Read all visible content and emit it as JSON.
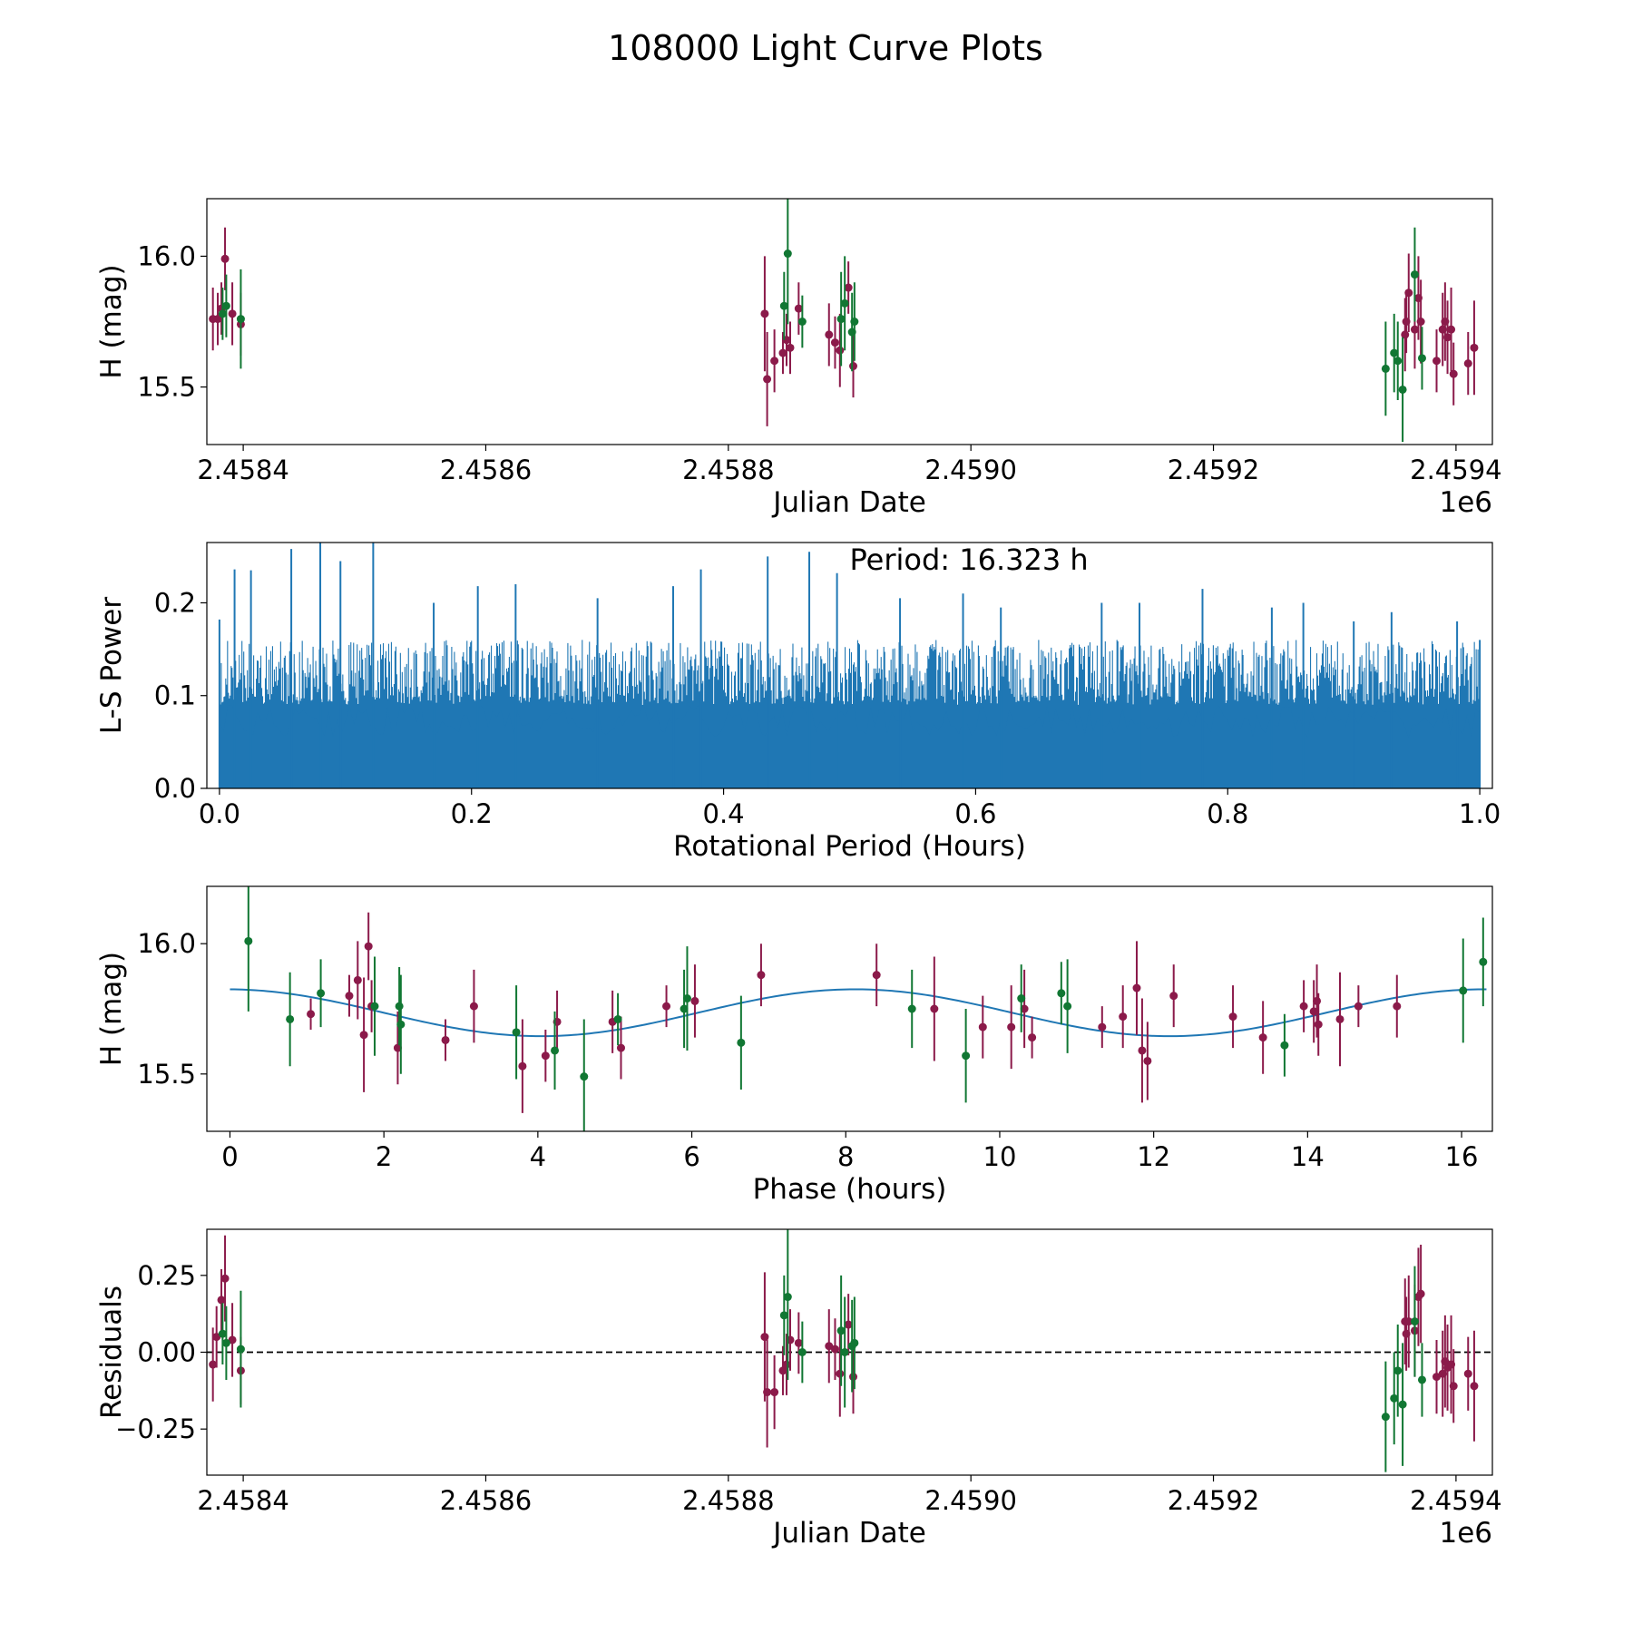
{
  "figure": {
    "title": "108000 Light Curve Plots"
  },
  "colors": {
    "filter_r": "#8b1a4a",
    "filter_g": "#117733",
    "model": "#1f77b4",
    "periodogram": "#1f77b4",
    "zero_line": "#000000"
  },
  "chart_data": [
    {
      "id": "lightcurve",
      "type": "scatter",
      "title": "",
      "xlabel": "Julian Date",
      "ylabel": "H (mag)",
      "x_offset_label": "1e6",
      "xlim": [
        2.45837,
        2.45943
      ],
      "ylim": [
        15.28,
        16.22
      ],
      "xticks": [
        2.4584,
        2.4586,
        2.4588,
        2.459,
        2.4592,
        2.4594
      ],
      "xtick_labels": [
        "2.4584",
        "2.4586",
        "2.4588",
        "2.4590",
        "2.4592",
        "2.4594"
      ],
      "yticks": [
        15.5,
        16.0
      ],
      "ytick_labels": [
        "15.5",
        "16.0"
      ],
      "series": [
        {
          "name": "r",
          "color": "#8b1a4a",
          "points": [
            [
              2.458375,
              15.76,
              0.12
            ],
            [
              2.458379,
              15.76,
              0.1
            ],
            [
              2.458382,
              15.8,
              0.1
            ],
            [
              2.458385,
              15.99,
              0.12
            ],
            [
              2.458391,
              15.78,
              0.12
            ],
            [
              2.458398,
              15.74,
              0.12
            ],
            [
              2.45883,
              15.78,
              0.22
            ],
            [
              2.458832,
              15.53,
              0.18
            ],
            [
              2.458838,
              15.6,
              0.12
            ],
            [
              2.458845,
              15.63,
              0.08
            ],
            [
              2.458848,
              15.68,
              0.1
            ],
            [
              2.458851,
              15.65,
              0.1
            ],
            [
              2.458858,
              15.8,
              0.1
            ],
            [
              2.458883,
              15.7,
              0.12
            ],
            [
              2.458888,
              15.67,
              0.1
            ],
            [
              2.458892,
              15.64,
              0.14
            ],
            [
              2.458899,
              15.88,
              0.1
            ],
            [
              2.458903,
              15.58,
              0.12
            ],
            [
              2.459358,
              15.7,
              0.14
            ],
            [
              2.459359,
              15.75,
              0.12
            ],
            [
              2.459361,
              15.86,
              0.15
            ],
            [
              2.459366,
              15.72,
              0.15
            ],
            [
              2.459369,
              15.84,
              0.16
            ],
            [
              2.459371,
              15.75,
              0.16
            ],
            [
              2.459384,
              15.6,
              0.12
            ],
            [
              2.459389,
              15.72,
              0.14
            ],
            [
              2.459391,
              15.75,
              0.15
            ],
            [
              2.459393,
              15.69,
              0.14
            ],
            [
              2.459396,
              15.72,
              0.16
            ],
            [
              2.459398,
              15.55,
              0.12
            ],
            [
              2.45941,
              15.59,
              0.12
            ],
            [
              2.459415,
              15.65,
              0.18
            ]
          ]
        },
        {
          "name": "g",
          "color": "#117733",
          "points": [
            [
              2.458383,
              15.78,
              0.1
            ],
            [
              2.458386,
              15.81,
              0.12
            ],
            [
              2.458398,
              15.76,
              0.19
            ],
            [
              2.458846,
              15.81,
              0.13
            ],
            [
              2.458849,
              16.01,
              0.27
            ],
            [
              2.458861,
              15.75,
              0.1
            ],
            [
              2.458893,
              15.76,
              0.18
            ],
            [
              2.458896,
              15.82,
              0.18
            ],
            [
              2.458902,
              15.71,
              0.15
            ],
            [
              2.458904,
              15.75,
              0.15
            ],
            [
              2.459342,
              15.57,
              0.18
            ],
            [
              2.459349,
              15.63,
              0.15
            ],
            [
              2.459352,
              15.6,
              0.15
            ],
            [
              2.459356,
              15.49,
              0.2
            ],
            [
              2.459366,
              15.93,
              0.18
            ],
            [
              2.459372,
              15.61,
              0.12
            ]
          ]
        }
      ]
    },
    {
      "id": "periodogram",
      "type": "line",
      "title": "",
      "annotation": "Period: 16.323 h",
      "xlabel": "Rotational Period (Hours)",
      "ylabel": "L-S Power",
      "xlim": [
        -0.01,
        1.01
      ],
      "ylim": [
        0.0,
        0.265
      ],
      "xticks": [
        0.0,
        0.2,
        0.4,
        0.6,
        0.8,
        1.0
      ],
      "xtick_labels": [
        "0.0",
        "0.2",
        "0.4",
        "0.6",
        "0.8",
        "1.0"
      ],
      "yticks": [
        0.0,
        0.1,
        0.2
      ],
      "ytick_labels": [
        "0.0",
        "0.1",
        "0.2"
      ],
      "peaks": [
        [
          0.0,
          0.182
        ],
        [
          0.012,
          0.236
        ],
        [
          0.025,
          0.235
        ],
        [
          0.057,
          0.258
        ],
        [
          0.08,
          0.27
        ],
        [
          0.096,
          0.245
        ],
        [
          0.122,
          0.27
        ],
        [
          0.17,
          0.2
        ],
        [
          0.205,
          0.218
        ],
        [
          0.235,
          0.22
        ],
        [
          0.3,
          0.205
        ],
        [
          0.36,
          0.218
        ],
        [
          0.382,
          0.236
        ],
        [
          0.435,
          0.25
        ],
        [
          0.468,
          0.255
        ],
        [
          0.49,
          0.232
        ],
        [
          0.54,
          0.205
        ],
        [
          0.59,
          0.21
        ],
        [
          0.62,
          0.195
        ],
        [
          0.7,
          0.2
        ],
        [
          0.73,
          0.2
        ],
        [
          0.78,
          0.215
        ],
        [
          0.835,
          0.195
        ],
        [
          0.86,
          0.2
        ],
        [
          0.9,
          0.18
        ],
        [
          0.93,
          0.19
        ],
        [
          0.982,
          0.18
        ],
        [
          1.0,
          0.16
        ]
      ],
      "typical_peak_range": [
        0.1,
        0.16
      ],
      "noise_floor_range": [
        0.04,
        0.09
      ]
    },
    {
      "id": "phased",
      "type": "scatter",
      "title": "",
      "xlabel": "Phase (hours)",
      "ylabel": "H (mag)",
      "xlim": [
        -0.3,
        16.4
      ],
      "ylim": [
        15.28,
        16.22
      ],
      "xticks": [
        0,
        2,
        4,
        6,
        8,
        10,
        12,
        14,
        16
      ],
      "xtick_labels": [
        "0",
        "2",
        "4",
        "6",
        "8",
        "10",
        "12",
        "14",
        "16"
      ],
      "yticks": [
        15.5,
        16.0
      ],
      "ytick_labels": [
        "15.5",
        "16.0"
      ],
      "model": {
        "period_hours": 16.323,
        "mean": 15.735,
        "amplitude": 0.09,
        "peak_phase": 8.12,
        "samples": [
          0,
          16.323
        ]
      },
      "series": [
        {
          "name": "r",
          "color": "#8b1a4a",
          "points": [
            [
              1.05,
              15.73,
              0.06
            ],
            [
              1.55,
              15.8,
              0.08
            ],
            [
              1.66,
              15.86,
              0.15
            ],
            [
              1.74,
              15.65,
              0.22
            ],
            [
              1.8,
              15.99,
              0.13
            ],
            [
              1.84,
              15.76,
              0.1
            ],
            [
              2.18,
              15.6,
              0.14
            ],
            [
              2.8,
              15.63,
              0.08
            ],
            [
              3.17,
              15.76,
              0.14
            ],
            [
              3.8,
              15.53,
              0.18
            ],
            [
              4.1,
              15.57,
              0.1
            ],
            [
              4.25,
              15.7,
              0.12
            ],
            [
              4.97,
              15.7,
              0.12
            ],
            [
              5.08,
              15.6,
              0.12
            ],
            [
              5.67,
              15.76,
              0.08
            ],
            [
              6.04,
              15.78,
              0.14
            ],
            [
              6.9,
              15.88,
              0.12
            ],
            [
              8.4,
              15.88,
              0.12
            ],
            [
              9.15,
              15.75,
              0.2
            ],
            [
              9.78,
              15.68,
              0.12
            ],
            [
              10.15,
              15.68,
              0.16
            ],
            [
              10.32,
              15.75,
              0.15
            ],
            [
              10.42,
              15.64,
              0.08
            ],
            [
              11.33,
              15.68,
              0.08
            ],
            [
              11.6,
              15.72,
              0.12
            ],
            [
              11.78,
              15.83,
              0.18
            ],
            [
              11.85,
              15.59,
              0.2
            ],
            [
              11.92,
              15.55,
              0.15
            ],
            [
              12.26,
              15.8,
              0.12
            ],
            [
              13.03,
              15.72,
              0.12
            ],
            [
              13.42,
              15.64,
              0.14
            ],
            [
              13.95,
              15.76,
              0.1
            ],
            [
              14.08,
              15.74,
              0.12
            ],
            [
              14.12,
              15.78,
              0.14
            ],
            [
              14.14,
              15.69,
              0.12
            ],
            [
              14.42,
              15.71,
              0.18
            ],
            [
              14.66,
              15.76,
              0.08
            ],
            [
              15.16,
              15.76,
              0.12
            ]
          ]
        },
        {
          "name": "g",
          "color": "#117733",
          "points": [
            [
              0.24,
              16.01,
              0.27
            ],
            [
              0.78,
              15.71,
              0.18
            ],
            [
              1.18,
              15.81,
              0.13
            ],
            [
              1.88,
              15.76,
              0.19
            ],
            [
              2.22,
              15.69,
              0.19
            ],
            [
              2.2,
              15.76,
              0.15
            ],
            [
              3.72,
              15.66,
              0.18
            ],
            [
              4.22,
              15.59,
              0.15
            ],
            [
              4.6,
              15.49,
              0.22
            ],
            [
              5.04,
              15.71,
              0.1
            ],
            [
              5.9,
              15.75,
              0.15
            ],
            [
              5.94,
              15.79,
              0.2
            ],
            [
              6.64,
              15.62,
              0.18
            ],
            [
              8.86,
              15.75,
              0.15
            ],
            [
              9.56,
              15.57,
              0.18
            ],
            [
              10.28,
              15.79,
              0.13
            ],
            [
              10.8,
              15.81,
              0.12
            ],
            [
              10.88,
              15.76,
              0.18
            ],
            [
              13.7,
              15.61,
              0.12
            ],
            [
              16.02,
              15.82,
              0.2
            ],
            [
              16.28,
              15.93,
              0.17
            ]
          ]
        }
      ]
    },
    {
      "id": "residuals",
      "type": "scatter",
      "title": "",
      "xlabel": "Julian Date",
      "ylabel": "Residuals",
      "x_offset_label": "1e6",
      "xlim": [
        2.45837,
        2.45943
      ],
      "ylim": [
        -0.4,
        0.4
      ],
      "xticks": [
        2.4584,
        2.4586,
        2.4588,
        2.459,
        2.4592,
        2.4594
      ],
      "xtick_labels": [
        "2.4584",
        "2.4586",
        "2.4588",
        "2.4590",
        "2.4592",
        "2.4594"
      ],
      "yticks": [
        -0.25,
        0.0,
        0.25
      ],
      "ytick_labels": [
        "−0.25",
        "0.00",
        "0.25"
      ],
      "reference_line": 0.0,
      "series": [
        {
          "name": "r",
          "color": "#8b1a4a",
          "points": [
            [
              2.458375,
              -0.04,
              0.12
            ],
            [
              2.458378,
              0.05,
              0.1
            ],
            [
              2.458382,
              0.17,
              0.1
            ],
            [
              2.458385,
              0.24,
              0.14
            ],
            [
              2.458391,
              0.04,
              0.12
            ],
            [
              2.458398,
              -0.06,
              0.11
            ],
            [
              2.45883,
              0.05,
              0.21
            ],
            [
              2.458832,
              -0.13,
              0.18
            ],
            [
              2.458838,
              -0.13,
              0.12
            ],
            [
              2.458845,
              -0.06,
              0.08
            ],
            [
              2.458848,
              -0.04,
              0.1
            ],
            [
              2.458851,
              0.04,
              0.1
            ],
            [
              2.458858,
              0.03,
              0.1
            ],
            [
              2.458883,
              0.02,
              0.12
            ],
            [
              2.458888,
              0.01,
              0.1
            ],
            [
              2.458892,
              -0.07,
              0.14
            ],
            [
              2.458899,
              0.09,
              0.1
            ],
            [
              2.458903,
              -0.08,
              0.12
            ],
            [
              2.459358,
              0.1,
              0.14
            ],
            [
              2.459359,
              0.06,
              0.12
            ],
            [
              2.459361,
              0.1,
              0.15
            ],
            [
              2.459366,
              0.07,
              0.15
            ],
            [
              2.459369,
              0.18,
              0.16
            ],
            [
              2.459371,
              0.19,
              0.16
            ],
            [
              2.459384,
              -0.08,
              0.12
            ],
            [
              2.459389,
              -0.07,
              0.14
            ],
            [
              2.459391,
              -0.03,
              0.15
            ],
            [
              2.459393,
              -0.05,
              0.14
            ],
            [
              2.459396,
              -0.04,
              0.16
            ],
            [
              2.459398,
              -0.11,
              0.12
            ],
            [
              2.45941,
              -0.07,
              0.12
            ],
            [
              2.459415,
              -0.11,
              0.18
            ]
          ]
        },
        {
          "name": "g",
          "color": "#117733",
          "points": [
            [
              2.458383,
              0.06,
              0.1
            ],
            [
              2.458386,
              0.03,
              0.12
            ],
            [
              2.458398,
              0.01,
              0.19
            ],
            [
              2.458846,
              0.12,
              0.13
            ],
            [
              2.458849,
              0.18,
              0.27
            ],
            [
              2.458861,
              0.0,
              0.1
            ],
            [
              2.458893,
              0.07,
              0.18
            ],
            [
              2.458896,
              0.0,
              0.18
            ],
            [
              2.458902,
              0.02,
              0.15
            ],
            [
              2.458904,
              0.03,
              0.15
            ],
            [
              2.459342,
              -0.21,
              0.18
            ],
            [
              2.459349,
              -0.15,
              0.15
            ],
            [
              2.459352,
              -0.06,
              0.15
            ],
            [
              2.459356,
              -0.17,
              0.2
            ],
            [
              2.459366,
              0.1,
              0.18
            ],
            [
              2.459372,
              -0.09,
              0.12
            ]
          ]
        }
      ]
    }
  ]
}
